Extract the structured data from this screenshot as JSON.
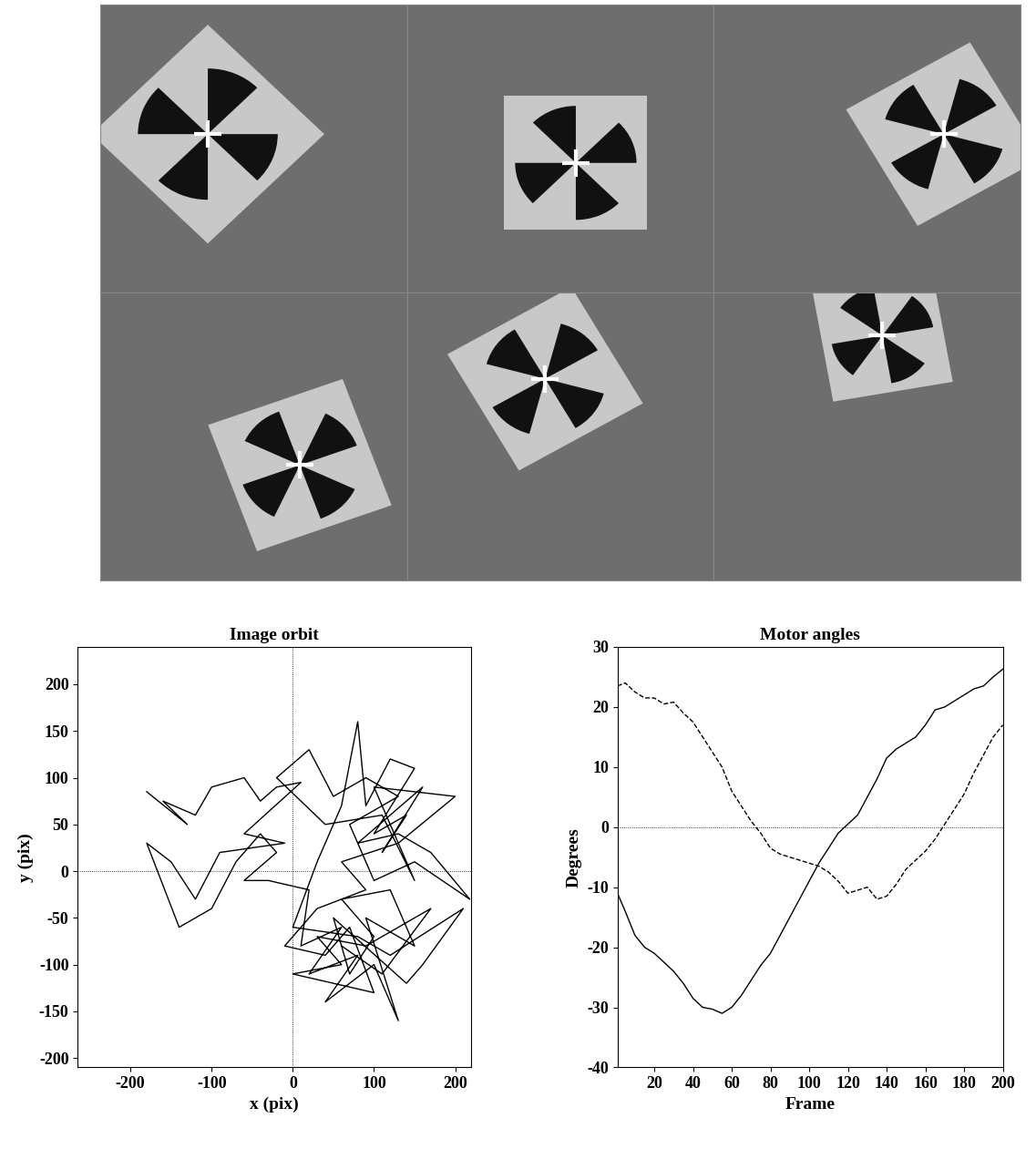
{
  "chart_data": [
    {
      "type": "line",
      "title": "Image orbit",
      "x_label": "x (pix)",
      "y_label": "y (pix)",
      "xlim": [
        -265,
        220
      ],
      "ylim": [
        -210,
        240
      ],
      "xticks": [
        -200,
        -100,
        0,
        100,
        200
      ],
      "yticks": [
        -200,
        -150,
        -100,
        -50,
        0,
        50,
        100,
        150,
        200
      ],
      "reference_x": 0,
      "reference_y": 0,
      "color": "#000000",
      "line_style": "solid",
      "series": [
        {
          "color": "#000000",
          "x": [
            -180,
            -130,
            -160,
            -120,
            -100,
            -60,
            -40,
            -20,
            10,
            -60,
            -10,
            -90,
            -120,
            -150,
            -180,
            -140,
            -100,
            -70,
            -40,
            -20,
            -60,
            -30,
            20,
            10,
            60,
            20,
            80,
            40,
            100,
            130,
            90,
            150,
            120,
            60,
            100,
            70,
            50,
            140,
            160,
            210,
            120,
            80,
            0,
            30,
            60,
            80,
            90,
            120,
            150,
            100,
            140,
            110,
            160,
            80,
            130,
            170,
            218,
            150,
            100,
            70,
            130,
            90,
            50,
            20,
            -20,
            40,
            110,
            150,
            100,
            200,
            130,
            60,
            90,
            30,
            -10,
            40,
            70,
            100,
            0,
            60,
            30,
            90,
            130,
            170,
            110,
            60
          ],
          "values": [
            85,
            50,
            75,
            60,
            90,
            100,
            75,
            90,
            95,
            40,
            30,
            20,
            -30,
            10,
            30,
            -60,
            -40,
            10,
            40,
            20,
            -10,
            -10,
            -20,
            -80,
            -60,
            -110,
            -90,
            -140,
            -100,
            -160,
            -50,
            -80,
            -20,
            -30,
            -70,
            -110,
            -50,
            -120,
            -100,
            -40,
            -90,
            -70,
            -60,
            10,
            70,
            160,
            70,
            120,
            110,
            40,
            60,
            20,
            90,
            30,
            40,
            20,
            -30,
            10,
            -10,
            50,
            80,
            100,
            80,
            130,
            100,
            50,
            60,
            -10,
            90,
            80,
            30,
            10,
            -20,
            -40,
            -80,
            -90,
            -60,
            -130,
            -110,
            -100,
            -70,
            -80,
            -60,
            -40,
            -110,
            -80
          ]
        }
      ]
    },
    {
      "type": "line",
      "title": "Motor angles",
      "x_label": "Frame",
      "y_label": "Degrees",
      "xlim": [
        1,
        200
      ],
      "ylim": [
        -40,
        30
      ],
      "xticks": [
        20,
        40,
        60,
        80,
        100,
        120,
        140,
        160,
        180,
        200
      ],
      "yticks": [
        -40,
        -30,
        -20,
        -10,
        0,
        10,
        20,
        30
      ],
      "reference_y": 0,
      "x": [
        1,
        5,
        10,
        15,
        20,
        25,
        30,
        35,
        40,
        45,
        50,
        55,
        60,
        65,
        70,
        75,
        80,
        85,
        90,
        95,
        100,
        105,
        110,
        115,
        120,
        125,
        130,
        135,
        140,
        145,
        150,
        155,
        160,
        165,
        170,
        175,
        180,
        185,
        190,
        195,
        200
      ],
      "series": [
        {
          "color": "#000000",
          "line_style": "solid",
          "values": [
            -11,
            -14,
            -18,
            -20,
            -21,
            -22.5,
            -24,
            -26,
            -28.5,
            -30,
            -30.3,
            -31,
            -30,
            -28,
            -25.5,
            -23,
            -21,
            -18,
            -15,
            -12,
            -9,
            -6,
            -3.5,
            -1,
            0.5,
            2,
            5,
            8,
            11.5,
            13,
            14,
            15,
            17,
            19.5,
            20,
            21,
            22,
            23,
            23.5,
            25,
            26.3
          ]
        },
        {
          "color": "#000000",
          "line_style": "dashed",
          "values": [
            23.5,
            24,
            22.5,
            21.5,
            21.5,
            20.5,
            20.8,
            19,
            17.5,
            15,
            12.5,
            10,
            6,
            3.5,
            1,
            -1,
            -3.5,
            -4.5,
            -5,
            -5.5,
            -6,
            -6.5,
            -7.5,
            -9,
            -11,
            -10.5,
            -10,
            -12,
            -11.5,
            -9.5,
            -7,
            -5.5,
            -4,
            -2,
            0.5,
            3,
            5.5,
            9,
            12,
            15,
            17
          ]
        }
      ]
    }
  ]
}
